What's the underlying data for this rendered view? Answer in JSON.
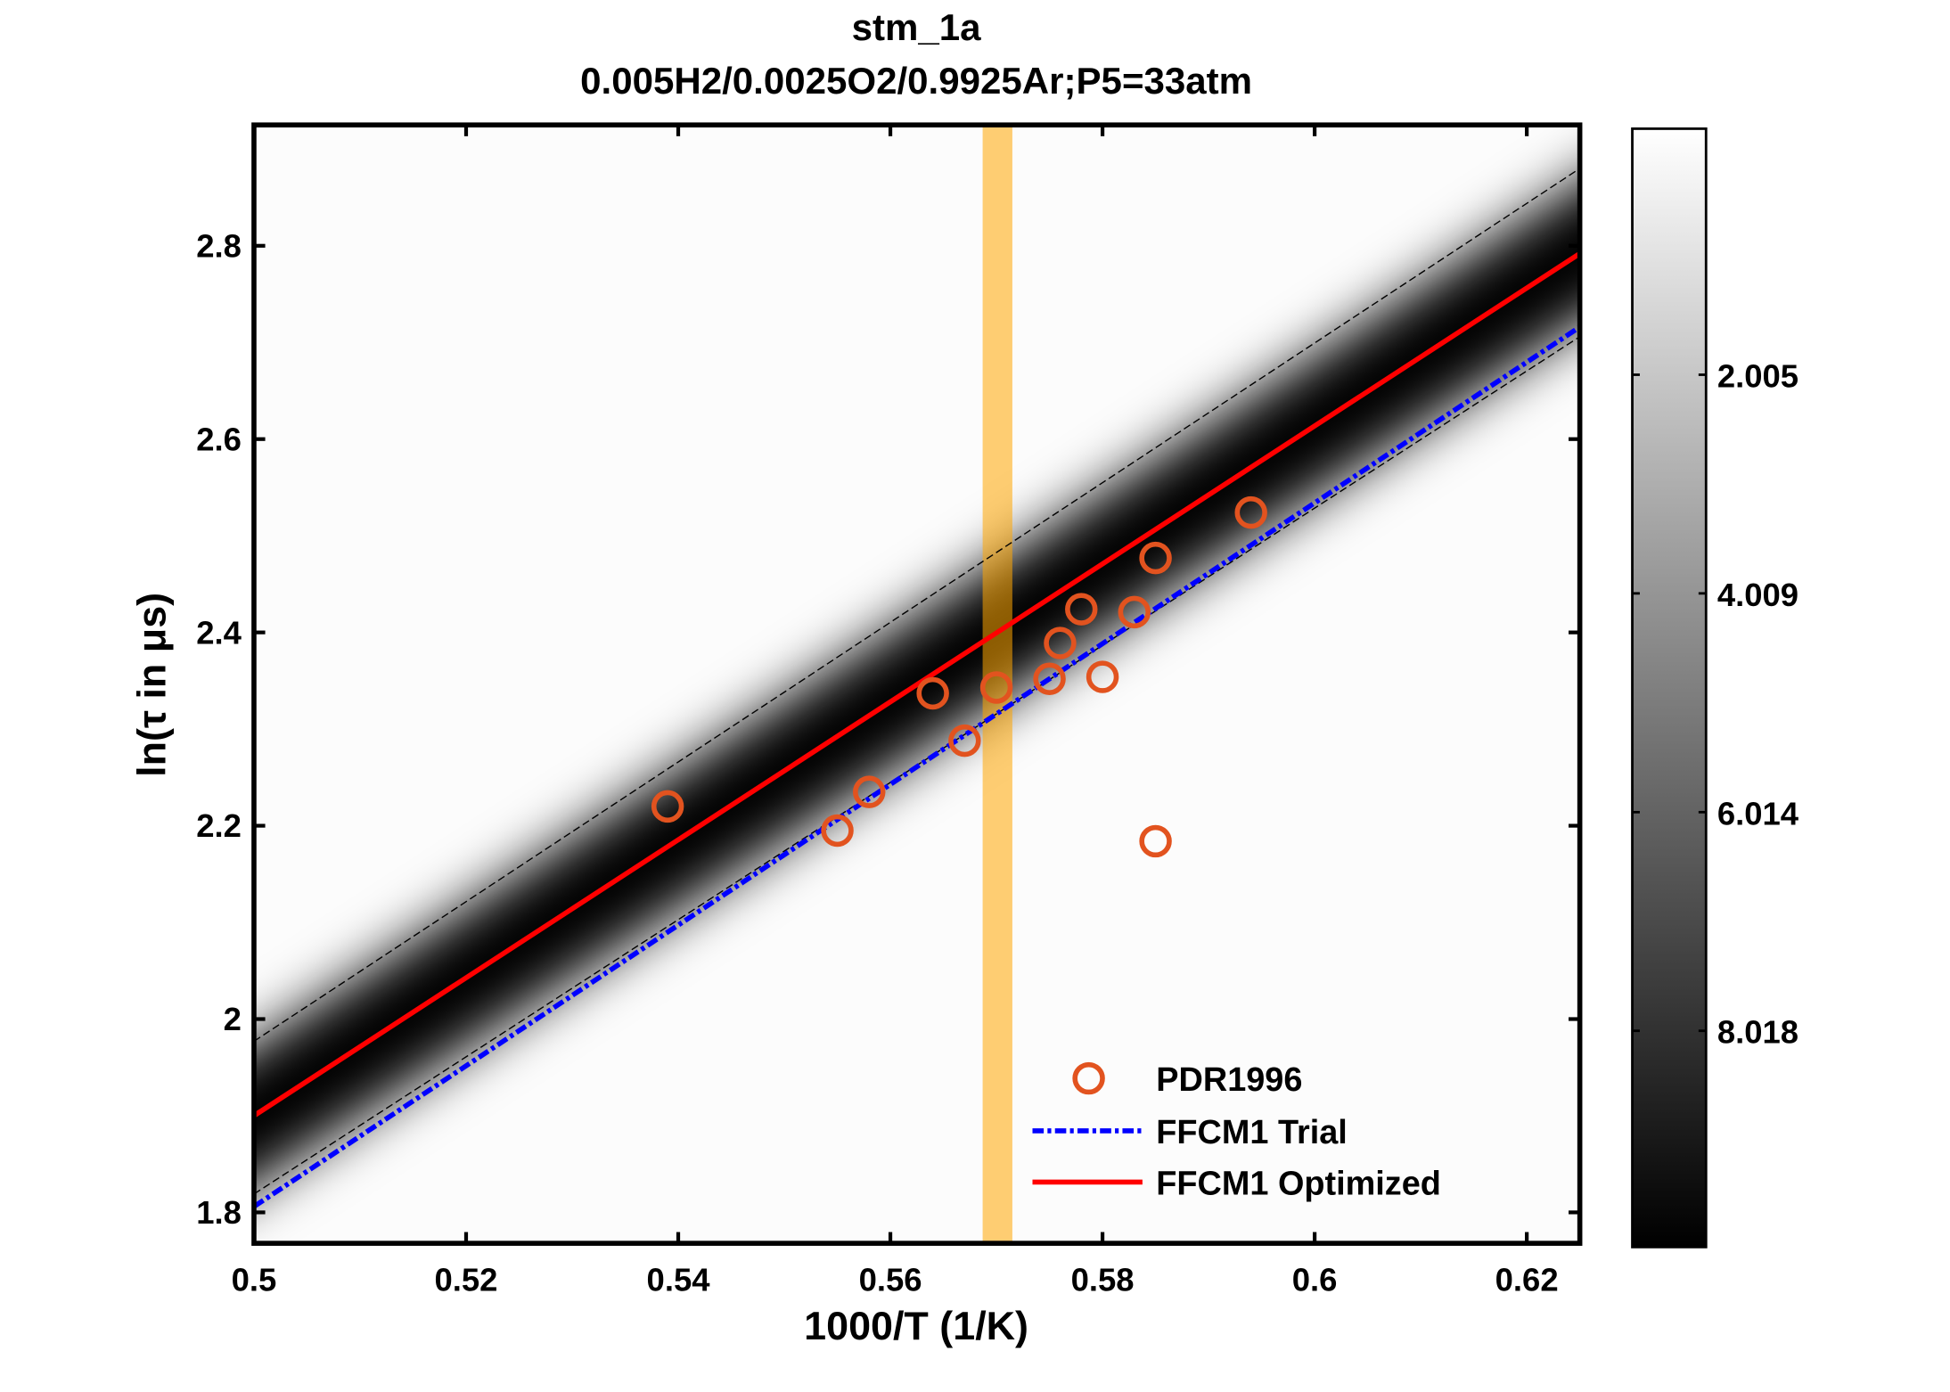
{
  "chart_data": {
    "type": "scatter",
    "title": "stm_1a",
    "subtitle": "0.005H2/0.0025O2/0.9925Ar;P5=33atm",
    "xlabel": "1000/T (1/K)",
    "ylabel": "ln(τ in μs)",
    "xlim": [
      0.5,
      0.625
    ],
    "ylim": [
      1.768,
      2.925
    ],
    "xticks": [
      0.5,
      0.52,
      0.54,
      0.56,
      0.58,
      0.6,
      0.62
    ],
    "xtick_labels": [
      "0.5",
      "0.52",
      "0.54",
      "0.56",
      "0.58",
      "0.6",
      "0.62"
    ],
    "yticks": [
      1.8,
      2.0,
      2.2,
      2.4,
      2.6,
      2.8
    ],
    "ytick_labels": [
      "1.8",
      "2",
      "2.2",
      "2.4",
      "2.6",
      "2.8"
    ],
    "grid": false,
    "legend_position": "bottom-right",
    "series": [
      {
        "name": "PDR1996",
        "kind": "scatter",
        "marker": "open-circle",
        "color": "#e2531f",
        "x": [
          0.539,
          0.555,
          0.558,
          0.564,
          0.567,
          0.57,
          0.575,
          0.576,
          0.578,
          0.58,
          0.583,
          0.585,
          0.585,
          0.594
        ],
        "y": [
          2.22,
          2.195,
          2.235,
          2.337,
          2.288,
          2.343,
          2.352,
          2.389,
          2.424,
          2.354,
          2.421,
          2.477,
          2.184,
          2.524
        ]
      },
      {
        "name": "FFCM1 Trial",
        "kind": "line",
        "style": "dash-dot",
        "color": "#0000ff",
        "x": [
          0.5,
          0.625
        ],
        "y": [
          1.806,
          2.716
        ]
      },
      {
        "name": "FFCM1 Optimized",
        "kind": "line",
        "style": "solid",
        "color": "#ff0000",
        "x": [
          0.5,
          0.625
        ],
        "y": [
          1.9,
          2.792
        ]
      }
    ],
    "uncertainty_bounds": {
      "color": "#000000",
      "style": "dashed",
      "upper": {
        "x": [
          0.5,
          0.625
        ],
        "y": [
          1.977,
          2.88
        ]
      },
      "lower": {
        "x": [
          0.5,
          0.625
        ],
        "y": [
          1.819,
          2.706
        ]
      }
    },
    "highlight_band": {
      "color": "#ffa500",
      "x": [
        0.5687,
        0.5715
      ]
    },
    "colorbar": {
      "colormap": "gray",
      "clim": [
        -0.25,
        10.0
      ],
      "ticks": [
        2.005,
        4.009,
        6.014,
        8.018
      ],
      "tick_labels": [
        "2.005",
        "4.009",
        "6.014",
        "8.018"
      ]
    }
  }
}
